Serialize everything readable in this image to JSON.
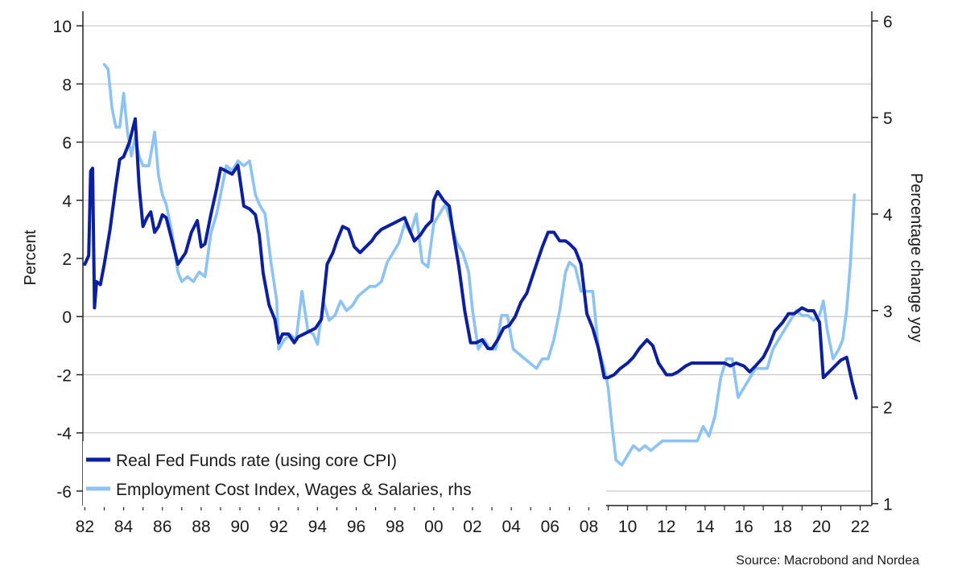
{
  "chart_data": {
    "type": "line",
    "ylabel": "Percent",
    "y2label": "Percentage change yoy",
    "ylim": [
      -6.5,
      10.5
    ],
    "y2lim": [
      0.98,
      6.1
    ],
    "xlim": [
      1981.9,
      2022.6
    ],
    "left_ticks": [
      "10",
      "8",
      "6",
      "4",
      "2",
      "0",
      "-2",
      "-4",
      "-6"
    ],
    "left_tick_values": [
      10,
      8,
      6,
      4,
      2,
      0,
      -2,
      -4,
      -6
    ],
    "right_ticks": [
      "6",
      "5",
      "4",
      "3",
      "2",
      "1"
    ],
    "right_tick_values": [
      6,
      5,
      4,
      3,
      2,
      1
    ],
    "x_ticks": [
      "82",
      "84",
      "86",
      "88",
      "90",
      "92",
      "94",
      "96",
      "98",
      "00",
      "02",
      "04",
      "06",
      "08",
      "10",
      "12",
      "14",
      "16",
      "18",
      "20",
      "22"
    ],
    "x_tick_values": [
      1982,
      1984,
      1986,
      1988,
      1990,
      1992,
      1994,
      1996,
      1998,
      2000,
      2002,
      2004,
      2006,
      2008,
      2010,
      2012,
      2014,
      2016,
      2018,
      2020,
      2022
    ],
    "grid": true,
    "legend_position": "bottom-left",
    "source": "Source: Macrobond and Nordea",
    "colors": {
      "series1": "#0b1fa0",
      "series2": "#8cc3f4",
      "grid": "#c6c6c6",
      "axis": "#222222"
    },
    "series": [
      {
        "name": "Real Fed Funds rate (using core CPI)",
        "axis": "left",
        "x": [
          1982.0,
          1982.2,
          1982.3,
          1982.4,
          1982.5,
          1982.6,
          1982.8,
          1983.0,
          1983.3,
          1983.6,
          1983.8,
          1984.0,
          1984.3,
          1984.6,
          1984.8,
          1985.0,
          1985.2,
          1985.4,
          1985.6,
          1985.8,
          1986.0,
          1986.2,
          1986.5,
          1986.8,
          1987.0,
          1987.2,
          1987.5,
          1987.8,
          1988.0,
          1988.2,
          1988.5,
          1988.8,
          1989.0,
          1989.3,
          1989.6,
          1989.9,
          1990.2,
          1990.5,
          1990.8,
          1991.0,
          1991.2,
          1991.5,
          1991.8,
          1992.0,
          1992.2,
          1992.5,
          1992.8,
          1993.0,
          1993.3,
          1993.6,
          1993.9,
          1994.2,
          1994.5,
          1994.8,
          1995.0,
          1995.3,
          1995.6,
          1995.9,
          1996.2,
          1996.5,
          1996.8,
          1997.0,
          1997.3,
          1997.6,
          1997.9,
          1998.2,
          1998.5,
          1998.8,
          1999.0,
          1999.3,
          1999.6,
          1999.9,
          2000.0,
          2000.2,
          2000.5,
          2000.8,
          2001.0,
          2001.3,
          2001.6,
          2001.9,
          2002.2,
          2002.5,
          2002.8,
          2003.0,
          2003.3,
          2003.6,
          2003.9,
          2004.2,
          2004.5,
          2004.8,
          2005.0,
          2005.3,
          2005.6,
          2005.9,
          2006.2,
          2006.5,
          2006.8,
          2007.0,
          2007.3,
          2007.6,
          2007.9,
          2008.2,
          2008.5,
          2008.8,
          2009.0,
          2009.3,
          2009.6,
          2010.0,
          2010.3,
          2010.6,
          2011.0,
          2011.3,
          2011.6,
          2012.0,
          2012.3,
          2012.6,
          2013.0,
          2013.3,
          2013.6,
          2014.0,
          2014.3,
          2014.6,
          2015.0,
          2015.3,
          2015.6,
          2016.0,
          2016.3,
          2016.6,
          2017.0,
          2017.3,
          2017.6,
          2018.0,
          2018.3,
          2018.6,
          2019.0,
          2019.3,
          2019.6,
          2019.9,
          2020.1,
          2020.4,
          2020.7,
          2021.0,
          2021.3,
          2021.6,
          2021.8
        ],
        "y": [
          1.8,
          2.1,
          5.0,
          5.1,
          0.3,
          1.2,
          1.1,
          1.8,
          3.0,
          4.5,
          5.4,
          5.5,
          6.0,
          6.8,
          4.5,
          3.1,
          3.4,
          3.6,
          2.9,
          3.1,
          3.5,
          3.4,
          2.6,
          1.8,
          2.0,
          2.2,
          2.9,
          3.3,
          2.4,
          2.5,
          3.5,
          4.4,
          5.1,
          5.0,
          4.9,
          5.2,
          3.8,
          3.7,
          3.5,
          2.8,
          1.5,
          0.4,
          -0.1,
          -0.9,
          -0.6,
          -0.6,
          -0.9,
          -0.7,
          -0.6,
          -0.5,
          -0.4,
          -0.1,
          1.8,
          2.2,
          2.6,
          3.1,
          3.0,
          2.4,
          2.2,
          2.4,
          2.6,
          2.8,
          3.0,
          3.1,
          3.2,
          3.3,
          3.4,
          2.9,
          2.6,
          2.8,
          3.1,
          3.3,
          4.0,
          4.3,
          4.0,
          3.8,
          2.9,
          1.7,
          0.2,
          -0.9,
          -0.9,
          -0.8,
          -1.1,
          -1.1,
          -0.8,
          -0.4,
          -0.3,
          0.0,
          0.5,
          0.8,
          1.2,
          1.8,
          2.4,
          2.9,
          2.9,
          2.6,
          2.6,
          2.5,
          2.3,
          1.8,
          0.1,
          -0.4,
          -1.1,
          -2.1,
          -2.1,
          -2.0,
          -1.8,
          -1.6,
          -1.4,
          -1.1,
          -0.8,
          -1.0,
          -1.6,
          -2.0,
          -2.0,
          -1.9,
          -1.7,
          -1.6,
          -1.6,
          -1.6,
          -1.6,
          -1.6,
          -1.6,
          -1.7,
          -1.6,
          -1.7,
          -1.9,
          -1.7,
          -1.4,
          -1.0,
          -0.5,
          -0.2,
          0.1,
          0.1,
          0.3,
          0.2,
          0.2,
          -0.2,
          -2.1,
          -1.9,
          -1.7,
          -1.5,
          -1.4,
          -2.3,
          -2.8
        ]
      },
      {
        "name": "Employment Cost Index, Wages & Salaries, rhs",
        "axis": "right",
        "x": [
          1983.0,
          1983.2,
          1983.4,
          1983.6,
          1983.8,
          1984.0,
          1984.2,
          1984.4,
          1984.6,
          1984.8,
          1985.0,
          1985.3,
          1985.6,
          1985.8,
          1986.0,
          1986.2,
          1986.5,
          1986.8,
          1987.0,
          1987.3,
          1987.6,
          1987.9,
          1988.2,
          1988.5,
          1988.8,
          1989.0,
          1989.3,
          1989.6,
          1989.9,
          1990.2,
          1990.5,
          1990.8,
          1991.0,
          1991.3,
          1991.6,
          1991.9,
          1992.0,
          1992.3,
          1992.6,
          1992.9,
          1993.2,
          1993.5,
          1993.8,
          1994.0,
          1994.3,
          1994.6,
          1994.9,
          1995.2,
          1995.5,
          1995.8,
          1996.1,
          1996.4,
          1996.7,
          1997.0,
          1997.3,
          1997.6,
          1997.9,
          1998.2,
          1998.5,
          1998.8,
          1999.1,
          1999.4,
          1999.7,
          2000.0,
          2000.3,
          2000.6,
          2000.9,
          2001.2,
          2001.5,
          2001.8,
          2002.0,
          2002.3,
          2002.6,
          2002.9,
          2003.2,
          2003.5,
          2003.8,
          2004.1,
          2004.4,
          2004.7,
          2005.0,
          2005.3,
          2005.6,
          2005.9,
          2006.2,
          2006.5,
          2006.8,
          2007.0,
          2007.3,
          2007.6,
          2007.9,
          2008.2,
          2008.5,
          2008.8,
          2009.0,
          2009.2,
          2009.4,
          2009.7,
          2010.0,
          2010.3,
          2010.6,
          2010.9,
          2011.2,
          2011.5,
          2011.8,
          2012.1,
          2012.4,
          2012.7,
          2013.0,
          2013.3,
          2013.6,
          2013.9,
          2014.2,
          2014.5,
          2014.8,
          2015.1,
          2015.4,
          2015.7,
          2016.0,
          2016.3,
          2016.6,
          2016.9,
          2017.2,
          2017.5,
          2017.8,
          2018.1,
          2018.4,
          2018.7,
          2019.0,
          2019.3,
          2019.6,
          2019.9,
          2020.1,
          2020.3,
          2020.6,
          2020.9,
          2021.1,
          2021.3,
          2021.5,
          2021.7
        ],
        "y": [
          5.55,
          5.5,
          5.1,
          4.9,
          4.9,
          5.25,
          4.85,
          4.6,
          4.8,
          4.6,
          4.5,
          4.5,
          4.85,
          4.4,
          4.2,
          4.1,
          3.8,
          3.4,
          3.3,
          3.35,
          3.3,
          3.4,
          3.35,
          3.8,
          4.0,
          4.2,
          4.5,
          4.45,
          4.55,
          4.5,
          4.55,
          4.2,
          4.1,
          4.0,
          3.5,
          3.1,
          2.6,
          2.7,
          2.75,
          2.7,
          3.2,
          2.8,
          2.75,
          2.65,
          3.1,
          2.9,
          2.95,
          3.1,
          3.0,
          3.05,
          3.15,
          3.2,
          3.25,
          3.25,
          3.3,
          3.5,
          3.6,
          3.7,
          3.9,
          3.8,
          4.0,
          3.5,
          3.45,
          3.9,
          4.0,
          4.1,
          3.9,
          3.7,
          3.6,
          3.4,
          3.0,
          2.6,
          2.7,
          2.6,
          2.6,
          2.95,
          2.95,
          2.6,
          2.55,
          2.5,
          2.45,
          2.4,
          2.5,
          2.5,
          2.7,
          3.0,
          3.4,
          3.5,
          3.45,
          3.2,
          3.2,
          3.2,
          2.6,
          2.4,
          2.2,
          1.8,
          1.45,
          1.4,
          1.5,
          1.6,
          1.55,
          1.6,
          1.55,
          1.6,
          1.65,
          1.65,
          1.65,
          1.65,
          1.65,
          1.65,
          1.65,
          1.8,
          1.7,
          1.9,
          2.3,
          2.5,
          2.5,
          2.1,
          2.2,
          2.3,
          2.4,
          2.4,
          2.4,
          2.6,
          2.7,
          2.8,
          2.9,
          3.0,
          2.95,
          2.95,
          2.9,
          2.95,
          3.1,
          2.8,
          2.5,
          2.6,
          2.7,
          3.0,
          3.5,
          4.2
        ]
      }
    ]
  }
}
